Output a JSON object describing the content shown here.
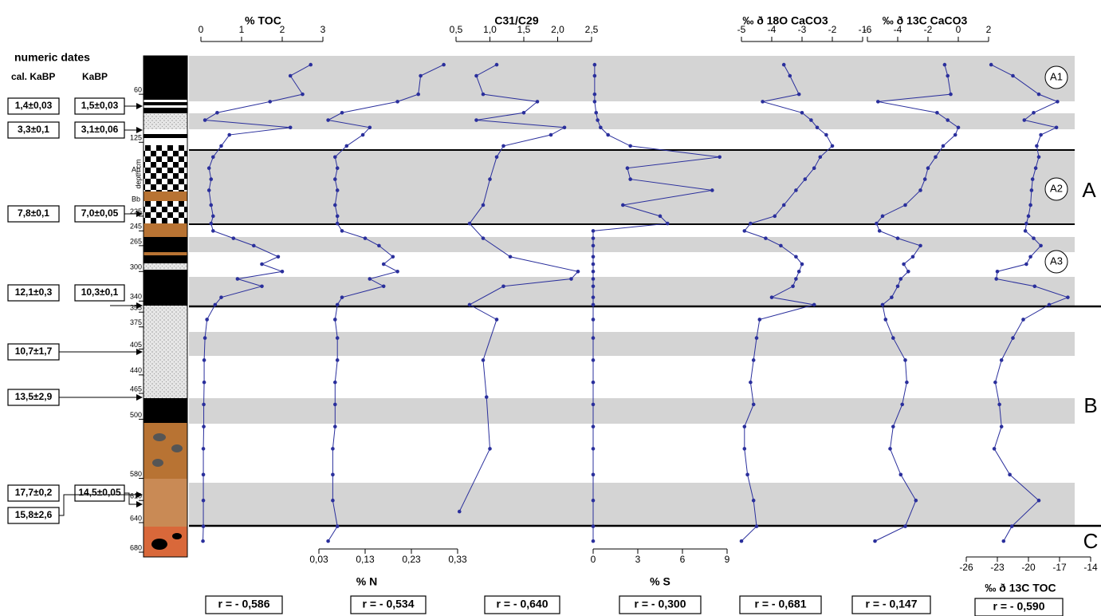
{
  "header": {
    "title": "numeric dates",
    "cal_label": "cal. KaBP",
    "ka_label": "KaBP"
  },
  "dates": [
    {
      "cal": "1,4±0,03",
      "ka": "1,5±0,03"
    },
    {
      "cal": "3,3±0,1",
      "ka": "3,1±0,06"
    },
    {
      "cal": "7,8±0,1",
      "ka": "7,0±0,05"
    },
    {
      "cal": "12,1±0,3",
      "ka": "10,3±0,1"
    },
    {
      "cal": "10,7±1,7"
    },
    {
      "cal": "13,5±2,9"
    },
    {
      "cal": "17,7±0,2",
      "ka": "14,5±0,05"
    },
    {
      "cal": "15,8±2,6"
    }
  ],
  "depth_axis": {
    "label": "depth cm",
    "ylim": [
      8,
      680
    ],
    "yticks": [
      60,
      125,
      225,
      245,
      265,
      300,
      340,
      355,
      375,
      405,
      440,
      465,
      500,
      580,
      610,
      640,
      680
    ]
  },
  "column_labels": [
    "Ab",
    "Bb"
  ],
  "subzones": [
    "A1",
    "A2",
    "A3"
  ],
  "zones": [
    "A",
    "B",
    "C"
  ],
  "chart_data": [
    {
      "type": "line",
      "title": "% TOC",
      "axis": "top",
      "color": "#2a2f9c",
      "xlim": [
        0,
        3
      ],
      "xticks": [
        0,
        1,
        2,
        3
      ],
      "r": "r = - 0,586",
      "depth": [
        20,
        35,
        60,
        70,
        85,
        95,
        105,
        115,
        130,
        145,
        160,
        175,
        190,
        210,
        225,
        235,
        245,
        255,
        265,
        280,
        290,
        300,
        310,
        320,
        335,
        345,
        365,
        390,
        420,
        450,
        480,
        510,
        540,
        575,
        610,
        645,
        665
      ],
      "values": [
        2.7,
        2.2,
        2.5,
        1.7,
        0.4,
        0.1,
        2.2,
        0.7,
        0.5,
        0.3,
        0.2,
        0.25,
        0.2,
        0.25,
        0.3,
        0.25,
        0.3,
        0.8,
        1.3,
        1.9,
        1.5,
        2.0,
        0.9,
        1.5,
        0.5,
        0.35,
        0.15,
        0.1,
        0.08,
        0.08,
        0.07,
        0.07,
        0.06,
        0.06,
        0.06,
        0.06,
        0.05
      ]
    },
    {
      "type": "line",
      "title": "% N",
      "axis": "bottom",
      "color": "#2a2f9c",
      "xlim": [
        0.03,
        0.33
      ],
      "xticks": [
        {
          "value": 0.03,
          "label": "0,03"
        },
        {
          "value": 0.13,
          "label": "0,13"
        },
        {
          "value": 0.23,
          "label": "0,23"
        },
        {
          "value": 0.33,
          "label": "0,33"
        }
      ],
      "r": "r = - 0,534",
      "depth": [
        20,
        35,
        60,
        70,
        85,
        95,
        105,
        115,
        130,
        145,
        160,
        175,
        190,
        210,
        225,
        235,
        245,
        255,
        265,
        280,
        290,
        300,
        310,
        320,
        335,
        345,
        365,
        390,
        420,
        450,
        480,
        510,
        540,
        575,
        610,
        645,
        665
      ],
      "values": [
        0.3,
        0.25,
        0.245,
        0.2,
        0.08,
        0.05,
        0.14,
        0.125,
        0.09,
        0.065,
        0.07,
        0.065,
        0.07,
        0.065,
        0.07,
        0.07,
        0.08,
        0.13,
        0.16,
        0.19,
        0.17,
        0.2,
        0.14,
        0.17,
        0.08,
        0.07,
        0.065,
        0.07,
        0.07,
        0.065,
        0.065,
        0.065,
        0.06,
        0.06,
        0.06,
        0.07,
        0.05
      ]
    },
    {
      "type": "line",
      "title": "C31/C29",
      "axis": "top",
      "color": "#2a2f9c",
      "xlim": [
        0.5,
        2.5
      ],
      "xticks": [
        {
          "value": 0.5,
          "label": "0,5"
        },
        {
          "value": 1.0,
          "label": "1,0"
        },
        {
          "value": 1.5,
          "label": "1,5"
        },
        {
          "value": 2.0,
          "label": "2,0"
        },
        {
          "value": 2.5,
          "label": "2,5"
        }
      ],
      "r": "r = - 0,640",
      "depth": [
        20,
        35,
        60,
        70,
        85,
        95,
        105,
        115,
        130,
        145,
        175,
        210,
        235,
        255,
        280,
        300,
        310,
        320,
        345,
        365,
        420,
        470,
        540,
        625
      ],
      "values": [
        1.1,
        0.8,
        0.9,
        1.7,
        1.5,
        0.8,
        2.1,
        1.9,
        1.2,
        1.1,
        1.0,
        0.9,
        0.7,
        0.9,
        1.3,
        2.3,
        2.2,
        1.2,
        0.7,
        1.1,
        0.9,
        0.95,
        1.0,
        0.55
      ]
    },
    {
      "type": "line",
      "title": "% S",
      "axis": "bottom",
      "color": "#2a2f9c",
      "xlim": [
        0,
        9
      ],
      "xticks": [
        0,
        3,
        6,
        9
      ],
      "r": "r = - 0,300",
      "depth": [
        20,
        35,
        60,
        70,
        85,
        95,
        105,
        115,
        130,
        145,
        160,
        175,
        190,
        210,
        225,
        235,
        245,
        255,
        265,
        280,
        290,
        300,
        310,
        320,
        335,
        345,
        365,
        390,
        420,
        450,
        480,
        510,
        540,
        575,
        610,
        645,
        665
      ],
      "values": [
        0.1,
        0.1,
        0.1,
        0.1,
        0.2,
        0.3,
        0.5,
        1.0,
        2.5,
        8.5,
        2.3,
        2.5,
        8,
        2,
        4.5,
        5,
        0,
        0,
        0,
        0,
        0,
        0,
        0,
        0,
        0,
        0,
        0,
        0,
        0,
        0,
        0,
        0,
        0,
        0,
        0,
        0,
        0
      ]
    },
    {
      "type": "line",
      "title": "‰ ð 18O CaCO3",
      "axis": "top",
      "color": "#2a2f9c",
      "xlim": [
        -5,
        -1
      ],
      "xticks": [
        -5,
        -4,
        -3,
        -2,
        -1
      ],
      "r": "r = - 0,681",
      "depth": [
        20,
        35,
        60,
        70,
        85,
        95,
        105,
        115,
        130,
        145,
        160,
        175,
        190,
        210,
        225,
        235,
        245,
        255,
        265,
        280,
        290,
        300,
        310,
        320,
        335,
        345,
        365,
        390,
        420,
        450,
        480,
        510,
        540,
        575,
        610,
        645,
        665
      ],
      "values": [
        -3.6,
        -3.4,
        -3.1,
        -4.3,
        -3.0,
        -2.7,
        -2.5,
        -2.2,
        -2.0,
        -2.4,
        -2.6,
        -2.9,
        -3.2,
        -3.6,
        -3.9,
        -4.7,
        -4.9,
        -4.2,
        -3.7,
        -3.2,
        -3.0,
        -3.1,
        -3.2,
        -3.3,
        -4.0,
        -2.6,
        -4.4,
        -4.5,
        -4.6,
        -4.7,
        -4.6,
        -4.9,
        -4.9,
        -4.8,
        -4.6,
        -4.5,
        -5.0
      ]
    },
    {
      "type": "line",
      "title": "‰ ð 13C CaCO3",
      "axis": "top",
      "color": "#2a2f9c",
      "xlim": [
        -6,
        2
      ],
      "xticks": [
        -6,
        -4,
        -2,
        0,
        2
      ],
      "r": "r = - 0,147",
      "depth": [
        20,
        35,
        60,
        70,
        85,
        95,
        105,
        115,
        130,
        145,
        160,
        175,
        190,
        210,
        225,
        235,
        245,
        255,
        265,
        280,
        290,
        300,
        310,
        320,
        335,
        345,
        365,
        390,
        420,
        450,
        480,
        510,
        540,
        575,
        610,
        645,
        665
      ],
      "values": [
        -0.9,
        -0.7,
        -0.5,
        -5.3,
        -1.4,
        -0.7,
        0.0,
        -0.2,
        -1.0,
        -1.5,
        -2.0,
        -2.2,
        -2.5,
        -3.5,
        -5.0,
        -5.4,
        -5.2,
        -4.0,
        -2.5,
        -3.0,
        -3.6,
        -3.3,
        -3.8,
        -4.0,
        -4.4,
        -5.0,
        -4.8,
        -4.3,
        -3.5,
        -3.4,
        -3.7,
        -4.3,
        -4.5,
        -3.8,
        -2.8,
        -3.5,
        -5.5
      ]
    },
    {
      "type": "line",
      "title": "‰ ð 13C TOC",
      "axis": "bottom",
      "color": "#2a2f9c",
      "xlim": [
        -26,
        -14
      ],
      "xticks": [
        -26,
        -23,
        -20,
        -17,
        -14
      ],
      "r": "r = - 0,590",
      "depth": [
        20,
        35,
        60,
        70,
        85,
        95,
        105,
        115,
        130,
        145,
        160,
        175,
        190,
        210,
        225,
        235,
        245,
        255,
        265,
        280,
        290,
        300,
        310,
        320,
        335,
        345,
        365,
        390,
        420,
        450,
        480,
        510,
        540,
        575,
        610,
        645,
        665
      ],
      "values": [
        -23.6,
        -21.5,
        -19.0,
        -17.2,
        -19.5,
        -20.4,
        -17.3,
        -18.8,
        -19.2,
        -19.0,
        -19.3,
        -19.6,
        -19.7,
        -19.8,
        -20.0,
        -20.2,
        -20.3,
        -19.5,
        -18.8,
        -19.8,
        -20.2,
        -23.0,
        -23.1,
        -19.4,
        -16.2,
        -18.0,
        -20.5,
        -21.5,
        -22.6,
        -23.2,
        -22.8,
        -22.6,
        -23.3,
        -21.8,
        -19.0,
        -21.6,
        -22.4
      ]
    }
  ]
}
